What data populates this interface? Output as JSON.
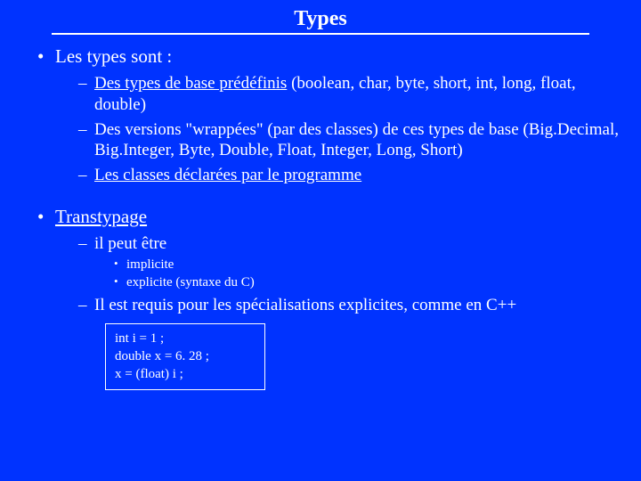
{
  "colors": {
    "background": "#0033ff",
    "text": "#ffffff",
    "rule": "#ffffff",
    "box_border": "#ffffff"
  },
  "fonts": {
    "family": "Times New Roman",
    "title_size": 24,
    "l1_size": 21,
    "l2_size": 19,
    "l3_size": 15,
    "code_size": 15
  },
  "title": "Types",
  "section1": {
    "heading": "Les types sont :",
    "b1_u": "Des types de base prédéfinis",
    "b1_rest": " (boolean, char, byte, short, int, long, float, double)",
    "b2": "Des versions \"wrappées\" (par des classes) de ces types de base (Big.Decimal, Big.Integer, Byte, Double, Float, Integer, Long, Short)",
    "b3_u": "Les classes déclarées par le programme"
  },
  "section2": {
    "heading_u": "Transtypage",
    "b1": "il peut être",
    "s1": "implicite",
    "s2": "explicite (syntaxe du C)",
    "b2": "Il est requis pour les spécialisations explicites, comme en C++"
  },
  "code": {
    "l1": "int i = 1 ;",
    "l2": "double x = 6. 28 ;",
    "l3": "x = (float) i ;"
  }
}
